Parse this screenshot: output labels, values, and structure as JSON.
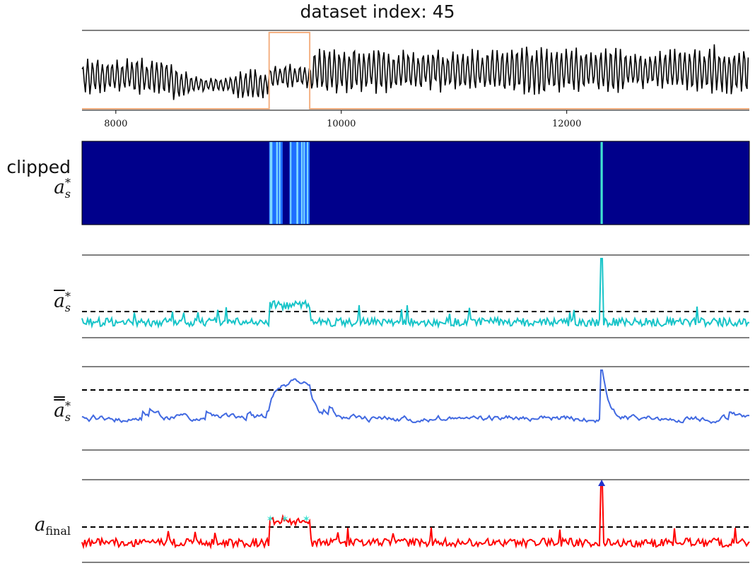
{
  "title": "dataset index: 45",
  "labels": {
    "clipped_word": "clipped",
    "a_symbol": "a",
    "sub_s": "s",
    "star": "*",
    "final_sub": "final"
  },
  "chart_data": [
    {
      "type": "line",
      "name": "raw-signal",
      "xlim": [
        7700,
        13620
      ],
      "xticks": [
        8000,
        10000,
        12000
      ],
      "series_color": "#000000",
      "anomaly_window_color": "#f4b183",
      "anomaly_window": [
        9360,
        9720
      ],
      "description_free": true
    },
    {
      "type": "heatmap",
      "name": "clipped-score-heatmap",
      "background_color": "#00008b",
      "bands": [
        {
          "x": [
            9360,
            9480
          ],
          "color": "#1e6eff"
        },
        {
          "x": [
            9540,
            9720
          ],
          "color": "#1e6eff"
        },
        {
          "x": [
            12300,
            12320
          ],
          "color": "#40e0d0"
        }
      ]
    },
    {
      "type": "line",
      "name": "mean-score",
      "series_color": "#17c4c8",
      "threshold_color": "#000000",
      "spike_x": 12310
    },
    {
      "type": "line",
      "name": "smoothed-score",
      "series_color": "#4169e1",
      "threshold_color": "#000000",
      "spike_x": 12310
    },
    {
      "type": "line",
      "name": "final-score",
      "series_color": "#ff0000",
      "threshold_color": "#000000",
      "spike_x": 12310,
      "marker_color": "#2233cc",
      "peak_marker_color": "#40e0d0"
    }
  ]
}
